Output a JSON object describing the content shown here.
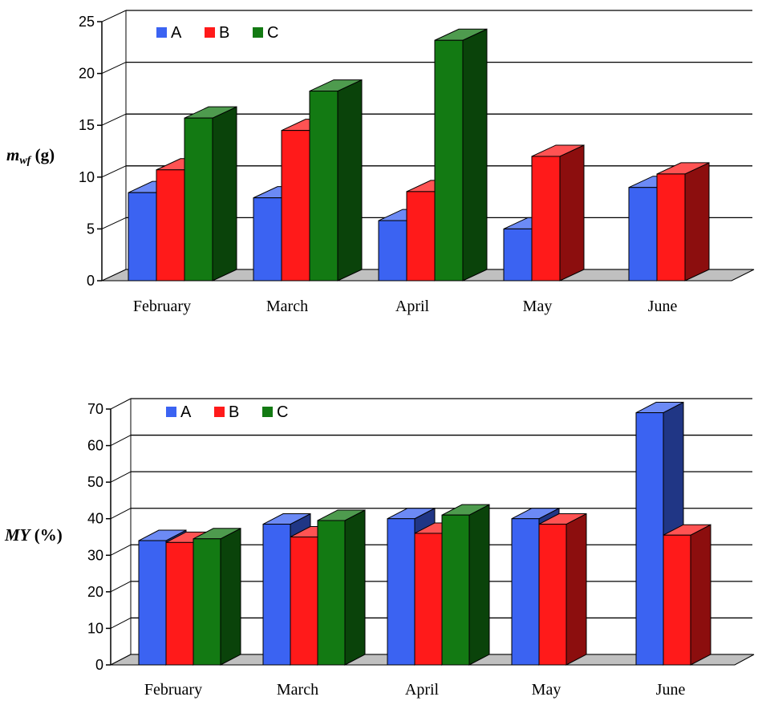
{
  "colors": {
    "A": "#3b63f2",
    "B": "#ff1a1a",
    "C": "#137a13"
  },
  "chart_data": [
    {
      "type": "bar",
      "ylabel_main": "m",
      "ylabel_sub": "wf",
      "ylabel_unit": " (g)",
      "categories": [
        "February",
        "March",
        "April",
        "May",
        "June"
      ],
      "series": [
        {
          "name": "A",
          "values": [
            8.5,
            8.0,
            5.8,
            5.0,
            9.0
          ]
        },
        {
          "name": "B",
          "values": [
            10.7,
            14.5,
            8.6,
            12.0,
            10.3
          ]
        },
        {
          "name": "C",
          "values": [
            15.7,
            18.3,
            23.2,
            null,
            null
          ]
        }
      ],
      "ylim": [
        0,
        25
      ],
      "yticks": [
        "0",
        "5",
        "10",
        "15",
        "20",
        "25"
      ],
      "legend": "top-left",
      "grid": true
    },
    {
      "type": "bar",
      "ylabel_main": "MY",
      "ylabel_unit": " (%)",
      "categories": [
        "February",
        "March",
        "April",
        "May",
        "June"
      ],
      "series": [
        {
          "name": "A",
          "values": [
            34,
            38.5,
            40,
            40,
            69
          ]
        },
        {
          "name": "B",
          "values": [
            33.5,
            35,
            36,
            38.5,
            35.5
          ]
        },
        {
          "name": "C",
          "values": [
            34.5,
            39.5,
            41,
            null,
            null
          ]
        }
      ],
      "ylim": [
        0,
        70
      ],
      "yticks": [
        "0",
        "10",
        "20",
        "30",
        "40",
        "50",
        "60",
        "70"
      ],
      "legend": "top-left",
      "grid": true
    }
  ]
}
